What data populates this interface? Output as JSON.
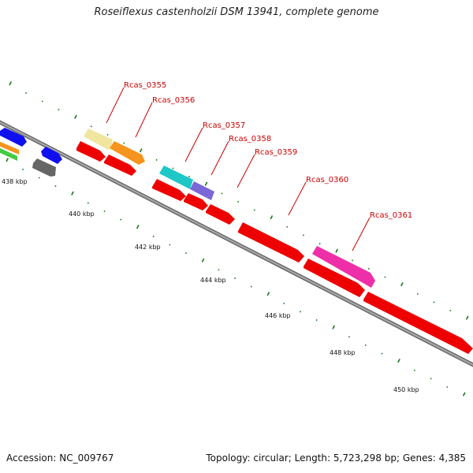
{
  "title": "Roseiflexus castenholzii DSM 13941, complete genome",
  "footer": {
    "accession": "Accession: NC_009767",
    "summary": "Topology: circular; Length: 5,723,298 bp; Genes: 4,385"
  },
  "axis": {
    "scale_labels": [
      "438 kbp",
      "440 kbp",
      "442 kbp",
      "444 kbp",
      "446 kbp",
      "448 kbp",
      "450 kbp"
    ]
  },
  "genes": [
    {
      "label": "Rcas_0355",
      "color": "#f0e6a0"
    },
    {
      "label": "Rcas_0356",
      "color": "#f7941d"
    },
    {
      "label": "Rcas_0357",
      "color": "#1fc7c7"
    },
    {
      "label": "Rcas_0358",
      "color": "#7b68d6"
    },
    {
      "label": "Rcas_0359",
      "color": "#ee0000"
    },
    {
      "label": "Rcas_0360",
      "color": "#ee0000"
    },
    {
      "label": "Rcas_0361",
      "color": "#ee2fa8"
    }
  ],
  "colors": {
    "label_red": "#cc0000",
    "tick_green": "#1a7a1a",
    "backbone": "#8a8a8a",
    "cds_red": "#ee0000",
    "blue": "#1010ee",
    "gray": "#666666",
    "orange": "#f7941d",
    "green": "#44cc44"
  }
}
